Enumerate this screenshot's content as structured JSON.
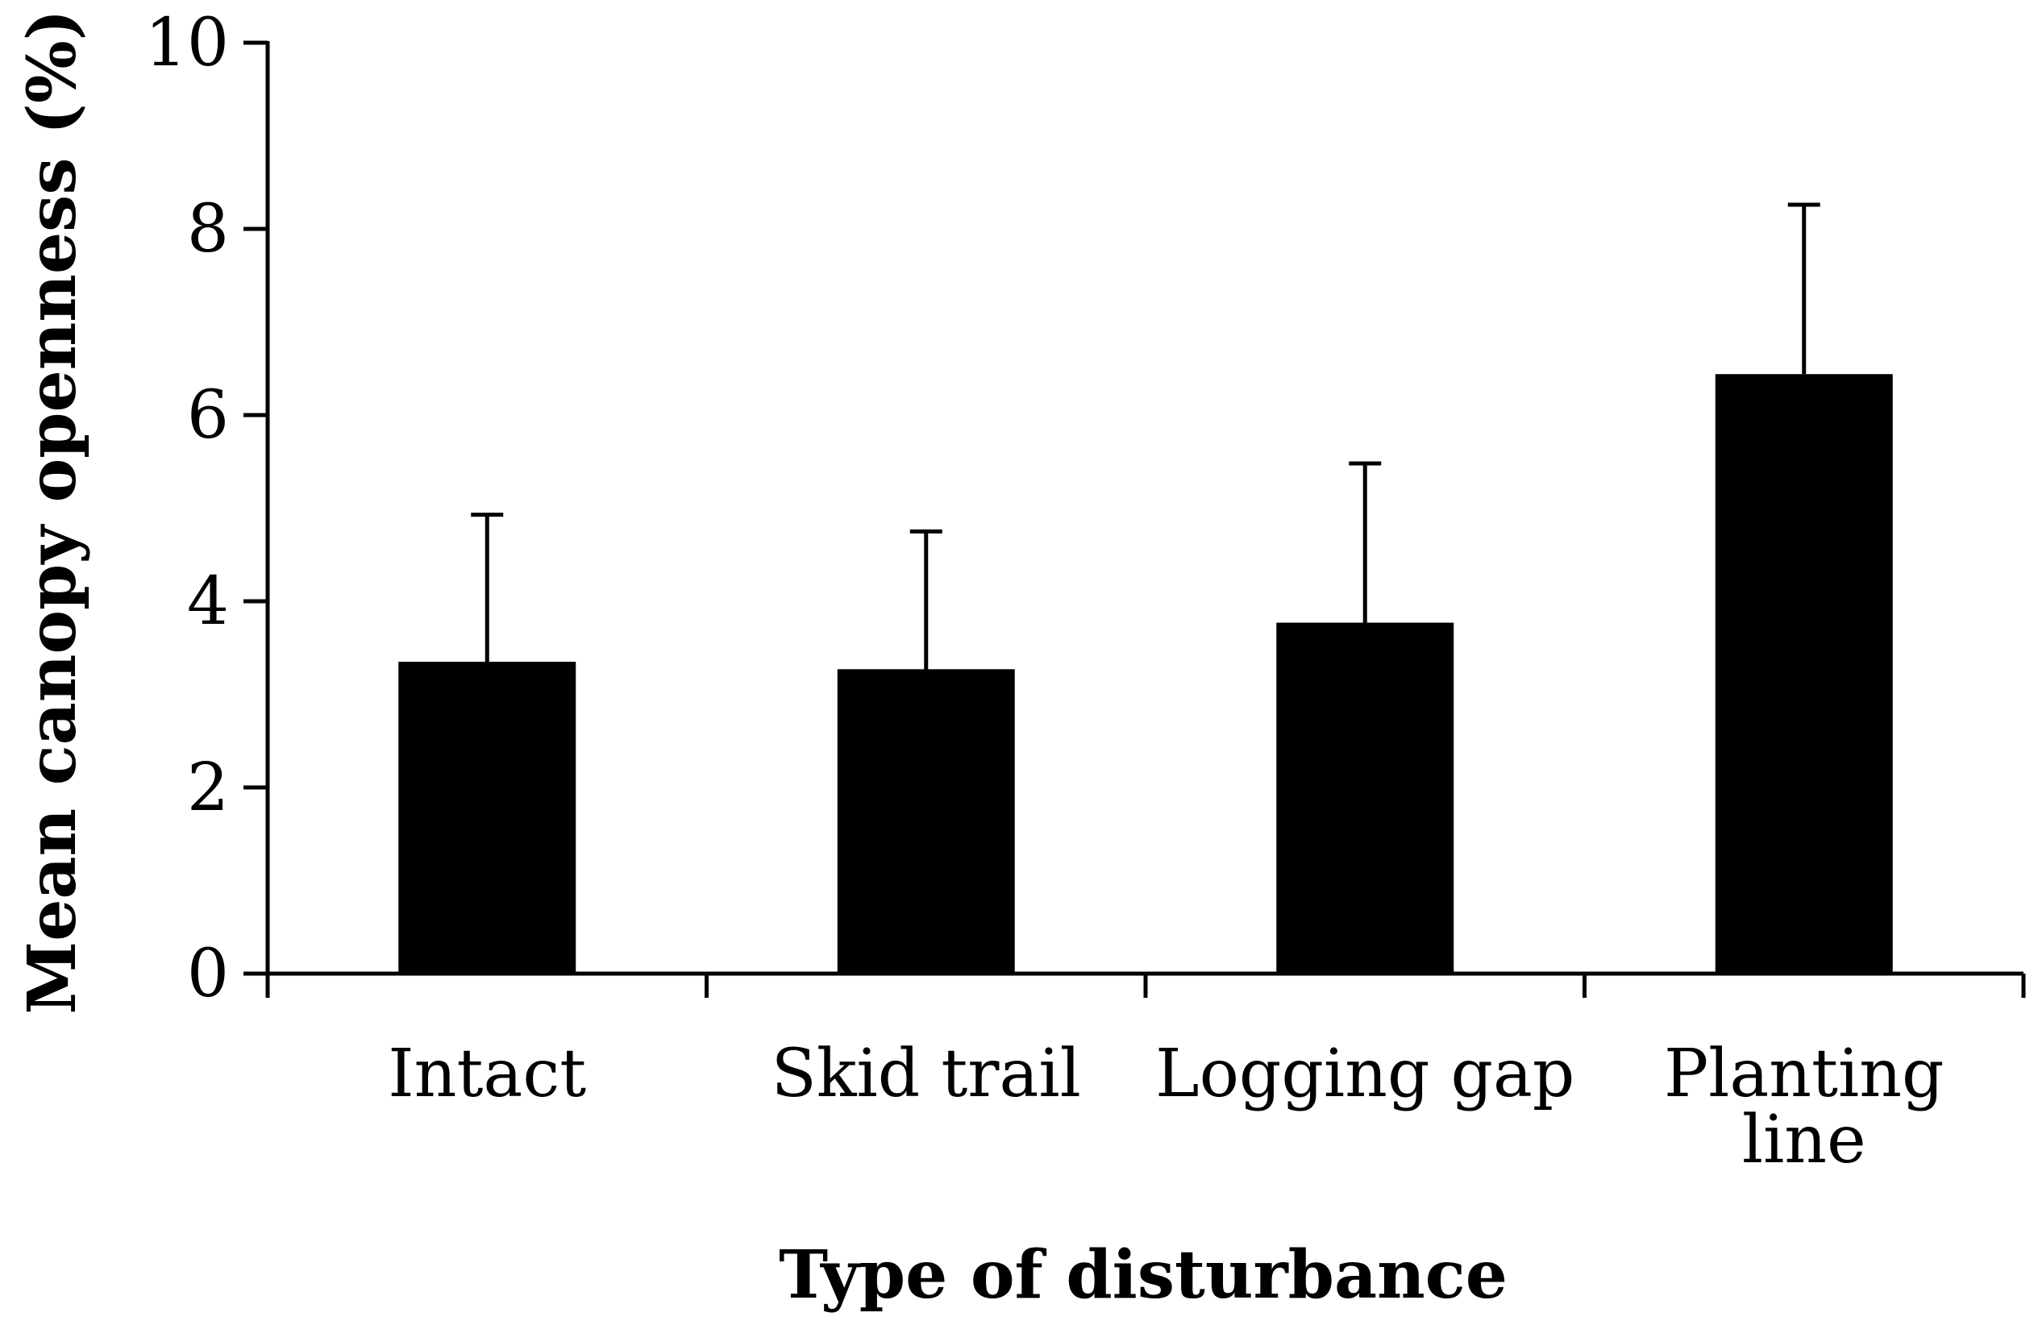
{
  "colors": {
    "bar": "#000000",
    "axis": "#000000",
    "background": "#ffffff"
  },
  "chart_data": {
    "type": "bar",
    "title": "",
    "xlabel": "Type of disturbance",
    "ylabel": "Mean canopy openness (%)",
    "categories": [
      [
        "Intact"
      ],
      [
        "Skid trail"
      ],
      [
        "Logging gap"
      ],
      [
        "Planting",
        "line"
      ]
    ],
    "values": [
      3.35,
      3.27,
      3.77,
      6.44
    ],
    "error_upper": [
      4.93,
      4.75,
      5.48,
      8.26
    ],
    "ylim": [
      0,
      10
    ],
    "yticks": [
      "0",
      "2",
      "4",
      "6",
      "8",
      "10"
    ],
    "grid": false,
    "legend": "none"
  }
}
